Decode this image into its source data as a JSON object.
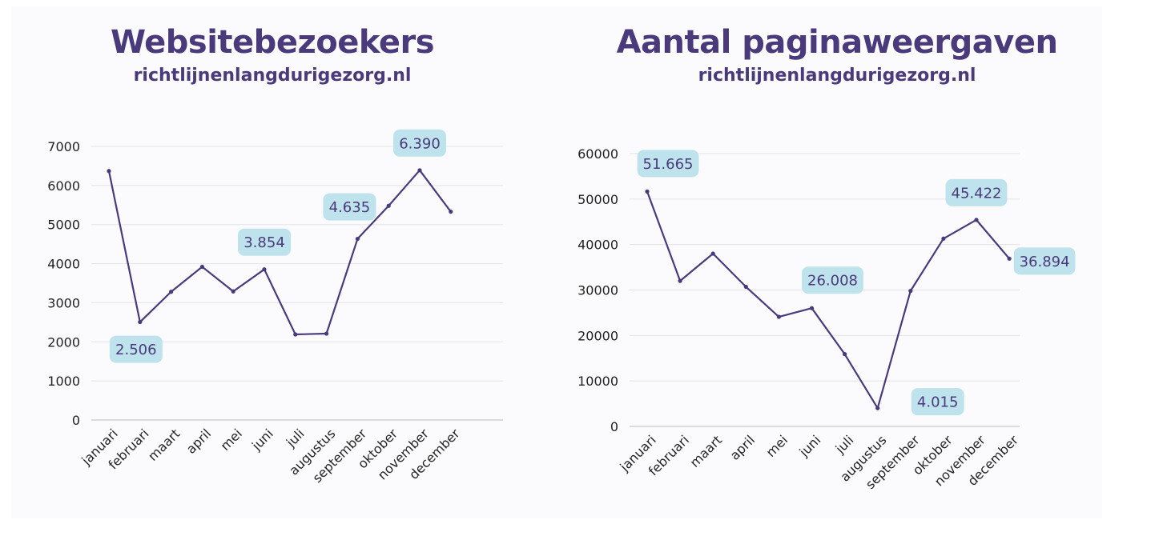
{
  "colors": {
    "line": "#4a3a7c",
    "callout_bg": "#bfe3ec",
    "grid": "#e4e4e8",
    "text": "#4a3a7c"
  },
  "chart_data": [
    {
      "type": "line",
      "title": "Websitebezoekers",
      "subtitle": "richtlijnenlangdurigezorg.nl",
      "categories": [
        "januari",
        "februari",
        "maart",
        "april",
        "mei",
        "juni",
        "juli",
        "augustus",
        "september",
        "oktober",
        "november",
        "december"
      ],
      "values": [
        6370,
        2506,
        3280,
        3920,
        3290,
        3854,
        2190,
        2210,
        4635,
        5480,
        6390,
        5330
      ],
      "yticks": [
        0,
        1000,
        2000,
        3000,
        4000,
        5000,
        6000,
        7000
      ],
      "ylim": [
        0,
        7000
      ],
      "grid": true,
      "callouts": [
        {
          "index": 1,
          "label": "2.506",
          "pos": "below"
        },
        {
          "index": 5,
          "label": "3.854",
          "pos": "above"
        },
        {
          "index": 8,
          "label": "4.635",
          "pos": "above-left"
        },
        {
          "index": 10,
          "label": "6.390",
          "pos": "above"
        }
      ]
    },
    {
      "type": "line",
      "title": "Aantal paginaweergaven",
      "subtitle": "richtlijnenlangdurigezorg.nl",
      "categories": [
        "januari",
        "februari",
        "maart",
        "april",
        "mei",
        "juni",
        "juli",
        "augustus",
        "september",
        "oktober",
        "november",
        "december"
      ],
      "values": [
        51665,
        32000,
        38000,
        30700,
        24100,
        26008,
        15900,
        4015,
        29800,
        41300,
        45422,
        36894
      ],
      "yticks": [
        0,
        10000,
        20000,
        30000,
        40000,
        50000,
        60000
      ],
      "ylim": [
        0,
        60000
      ],
      "grid": true,
      "callouts": [
        {
          "index": 0,
          "label": "51.665",
          "pos": "above-right"
        },
        {
          "index": 5,
          "label": "26.008",
          "pos": "above-right"
        },
        {
          "index": 7,
          "label": "4.015",
          "pos": "far-right"
        },
        {
          "index": 10,
          "label": "45.422",
          "pos": "above"
        },
        {
          "index": 11,
          "label": "36.894",
          "pos": "right"
        }
      ]
    }
  ]
}
